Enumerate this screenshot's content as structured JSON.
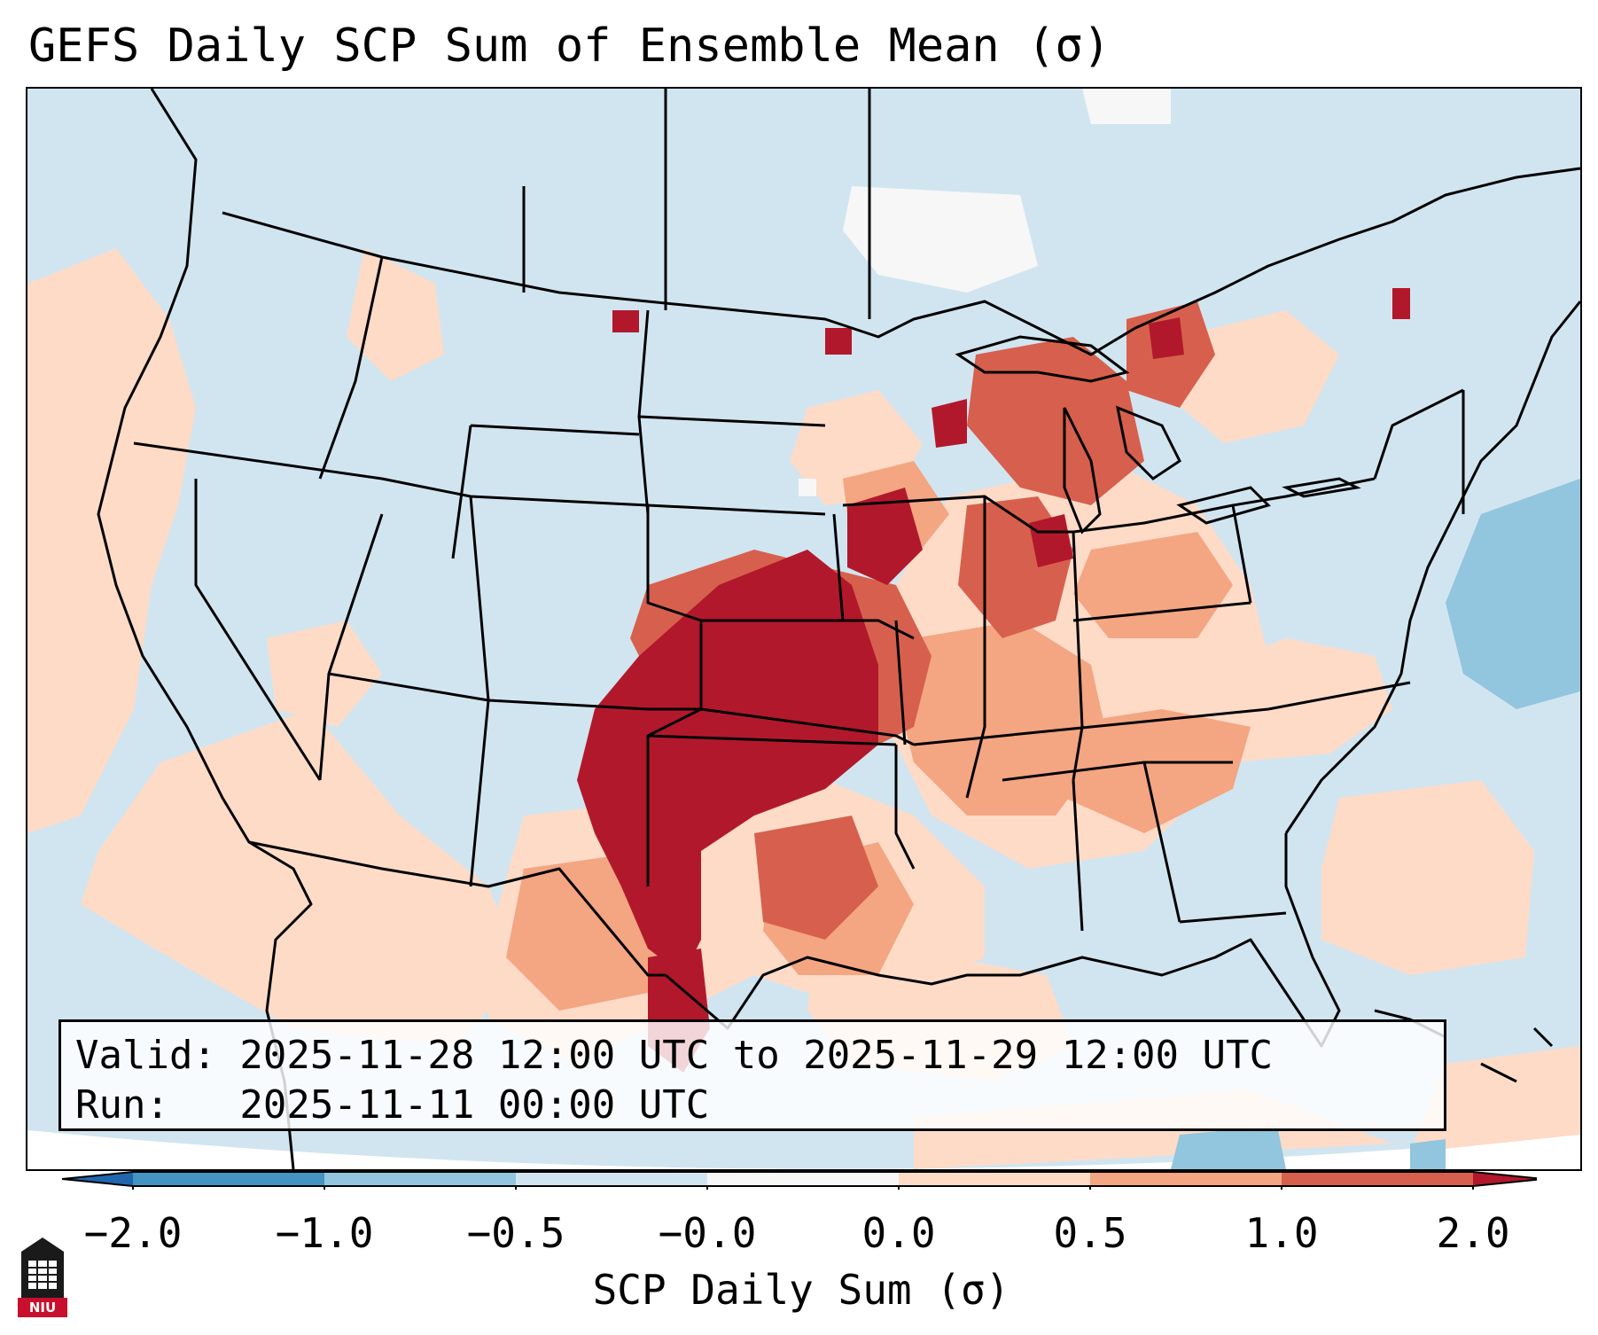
{
  "title": "GEFS Daily SCP Sum of Ensemble Mean (σ)",
  "info": {
    "valid_line": "Valid: 2025-11-28 12:00 UTC to 2025-11-29 12:00 UTC",
    "run_line": "Run:   2025-11-11 00:00 UTC"
  },
  "colorbar": {
    "label": "SCP Daily Sum (σ)",
    "ticks": [
      "−2.0",
      "−1.0",
      "−0.5",
      "−0.0",
      "0.0",
      "0.5",
      "1.0",
      "2.0"
    ],
    "colors": [
      "#4393c3",
      "#92c5de",
      "#d1e5f0",
      "#f7f7f7",
      "#fddbc7",
      "#f4a582",
      "#d6604d"
    ],
    "under_color": "#2166ac",
    "over_color": "#b2182b"
  },
  "logo": {
    "text": "NIU"
  },
  "colors": {
    "background_field": "#d1e5f0",
    "light_positive": "#fddbc7",
    "mid_positive": "#f4a582",
    "high_positive": "#d6604d",
    "extreme_positive": "#b2182b",
    "light_negative": "#92c5de",
    "near_zero": "#f7f7f7"
  }
}
